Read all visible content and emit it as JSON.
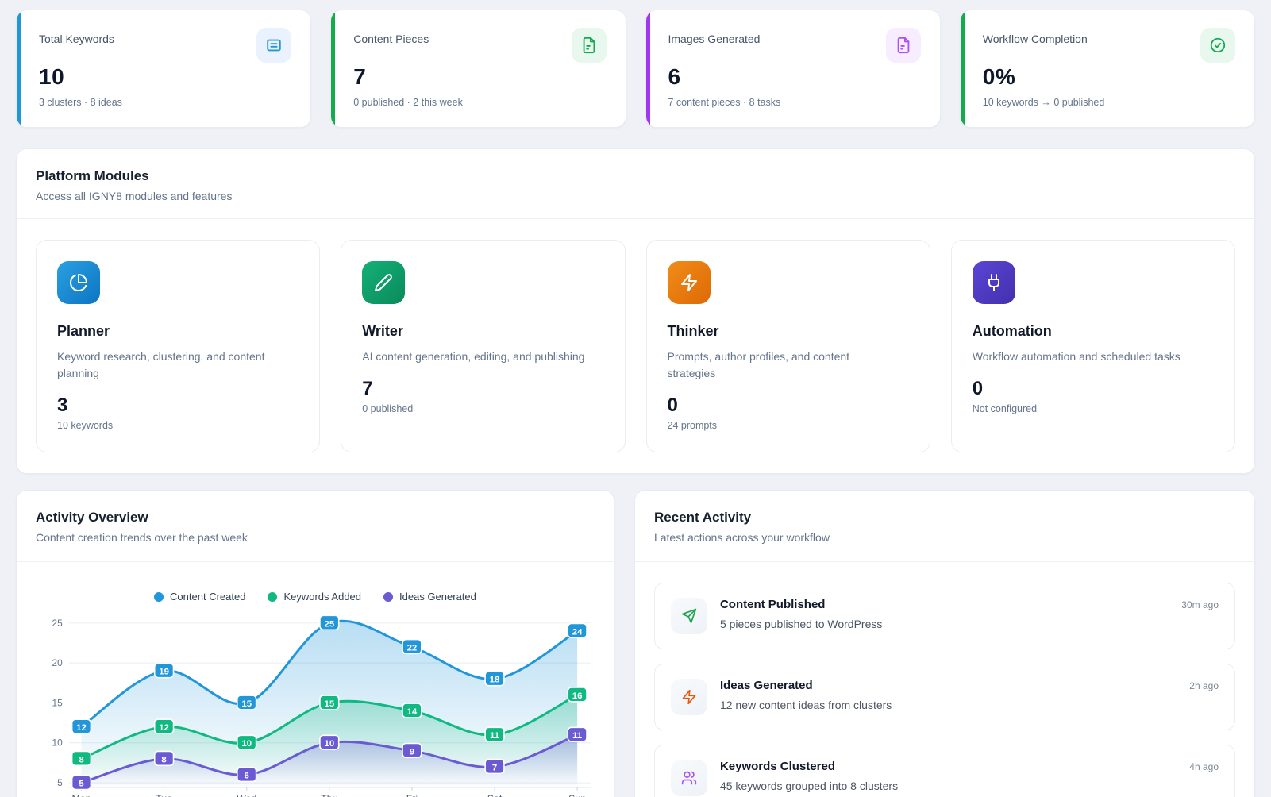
{
  "stats": [
    {
      "label": "Total Keywords",
      "value": "10",
      "sub": "3 clusters · 8 ideas",
      "accent": "#2196d9",
      "icon": "list-icon",
      "icon_bg": "#e9f2fd",
      "icon_color": "#2196d9"
    },
    {
      "label": "Content Pieces",
      "value": "7",
      "sub": "0 published · 2 this week",
      "accent": "#17a94f",
      "icon": "file-text-icon",
      "icon_bg": "#e8f8ee",
      "icon_color": "#17a94f"
    },
    {
      "label": "Images Generated",
      "value": "6",
      "sub": "7 content pieces · 8 tasks",
      "accent": "#a234f2",
      "icon": "file-image-icon",
      "icon_bg": "#f7edfe",
      "icon_color": "#b14ef5"
    },
    {
      "label": "Workflow Completion",
      "value": "0%",
      "sub": "10 keywords → 0 published",
      "accent": "#17a94f",
      "icon": "check-circle-icon",
      "icon_bg": "#e8f8ee",
      "icon_color": "#17a94f"
    }
  ],
  "modules_section": {
    "title": "Platform Modules",
    "subtitle": "Access all IGNY8 modules and features"
  },
  "modules": [
    {
      "name": "Planner",
      "description": "Keyword research, clustering, and content planning",
      "stat": "3",
      "stat_sub": "10 keywords",
      "icon": "pie-chart-icon",
      "tile_gradient": "linear-gradient(135deg,#2aa0e2,#0d74c2)"
    },
    {
      "name": "Writer",
      "description": "AI content generation, editing, and publishing",
      "stat": "7",
      "stat_sub": "0 published",
      "icon": "pencil-icon",
      "tile_gradient": "linear-gradient(135deg,#14b177,#0a8a5b)"
    },
    {
      "name": "Thinker",
      "description": "Prompts, author profiles, and content strategies",
      "stat": "0",
      "stat_sub": "24 prompts",
      "icon": "zap-icon",
      "tile_gradient": "linear-gradient(135deg,#f28c18,#dd6a06)"
    },
    {
      "name": "Automation",
      "description": "Workflow automation and scheduled tasks",
      "stat": "0",
      "stat_sub": "Not configured",
      "icon": "plug-icon",
      "tile_gradient": "linear-gradient(135deg,#5b45d6,#4330ac)"
    }
  ],
  "activity_overview": {
    "title": "Activity Overview",
    "subtitle": "Content creation trends over the past week"
  },
  "chart_data": {
    "type": "area",
    "title": "Activity Overview",
    "x": [
      "Mon",
      "Tue",
      "Wed",
      "Thu",
      "Fri",
      "Sat",
      "Sun"
    ],
    "series": [
      {
        "name": "Content Created",
        "color": "#2196d9",
        "values": [
          12,
          19,
          15,
          25,
          22,
          18,
          24
        ]
      },
      {
        "name": "Keywords Added",
        "color": "#10b981",
        "values": [
          8,
          12,
          10,
          15,
          14,
          11,
          16
        ]
      },
      {
        "name": "Ideas Generated",
        "color": "#6b5bd2",
        "values": [
          5,
          8,
          6,
          10,
          9,
          7,
          11
        ]
      }
    ],
    "yticks": [
      5,
      10,
      15,
      20,
      25
    ],
    "ylim": [
      5,
      25
    ],
    "grid": true,
    "legend_position": "top",
    "point_labels": true,
    "xlabel": "",
    "ylabel": ""
  },
  "recent_activity": {
    "title": "Recent Activity",
    "subtitle": "Latest actions across your workflow",
    "items": [
      {
        "title": "Content Published",
        "description": "5 pieces published to WordPress",
        "time": "30m ago",
        "icon": "send-icon",
        "icon_color": "#1fa24c"
      },
      {
        "title": "Ideas Generated",
        "description": "12 new content ideas from clusters",
        "time": "2h ago",
        "icon": "zap-icon",
        "icon_color": "#ea580c"
      },
      {
        "title": "Keywords Clustered",
        "description": "45 keywords grouped into 8 clusters",
        "time": "4h ago",
        "icon": "users-icon",
        "icon_color": "#a855f7"
      }
    ]
  }
}
